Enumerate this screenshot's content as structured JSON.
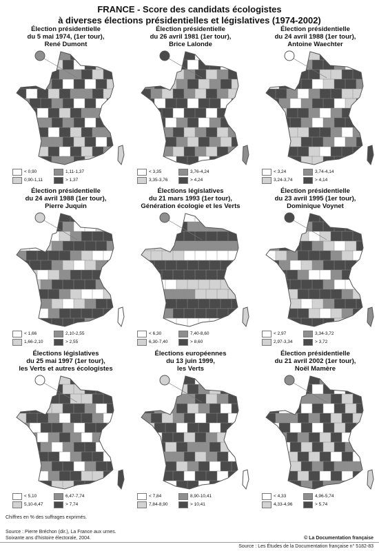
{
  "header": {
    "line1": "FRANCE -  Score des candidats écologistes",
    "line2": "à diverses élections présidentielles et législatives (1974-2002)"
  },
  "colors": {
    "c1": "#ffffff",
    "c2": "#d2d2d2",
    "c3": "#8e8e8e",
    "c4": "#4a4a4a"
  },
  "panels": [
    {
      "title": [
        "Élection présidentielle",
        "du 5 mai 1974, (1er tour),",
        "René Dumont"
      ],
      "legend": [
        "< 0,90",
        "0,90-1,11",
        "1,11-1,37",
        "> 1,37"
      ]
    },
    {
      "title": [
        "Élection présidentielle",
        "du 26 avril 1981 (1er tour),",
        "Brice Lalonde"
      ],
      "legend": [
        "< 3,35",
        "3,35-3,76",
        "3,76-4,24",
        "> 4,24"
      ]
    },
    {
      "title": [
        "Élection présidentielle",
        "du 24 avril 1988 (1er tour),",
        "Antoine Waechter"
      ],
      "legend": [
        "< 3,24",
        "3,24-3,74",
        "3,74-4,14",
        "> 4,14"
      ]
    },
    {
      "title": [
        "Élection présidentielle",
        "du 24 avril 1988 (1er tour),",
        "Pierre Juquin"
      ],
      "legend": [
        "< 1,66",
        "1,66-2,10",
        "2,10-2,55",
        "> 2,55"
      ]
    },
    {
      "title": [
        "Élections législatives",
        "du 21 mars 1993 (1er tour),",
        "Génération écologie et les Verts"
      ],
      "legend": [
        "< 6,30",
        "6,30-7,40",
        "7,40-8,60",
        "> 8,60"
      ]
    },
    {
      "title": [
        "Élection présidentielle",
        "du 23 avril 1995 (1er tour),",
        "Dominique Voynet"
      ],
      "legend": [
        "< 2,97",
        "2,97-3,34",
        "3,34-3,72",
        "> 3,72"
      ]
    },
    {
      "title": [
        "Élections législatives",
        "du 25 mai 1997 (1er tour),",
        "les Verts et autres écologistes"
      ],
      "legend": [
        "< 5,10",
        "5,10-6,47",
        "6,47-7,74",
        "> 7,74"
      ]
    },
    {
      "title": [
        "Élections européennes",
        "du 13 juin 1999,",
        "les Verts"
      ],
      "legend": [
        "< 7,84",
        "7,84-8,90",
        "8,90-10,41",
        "> 10,41"
      ]
    },
    {
      "title": [
        "Élection présidentielle",
        "du 21 avril 2002 (1er tour),",
        "Noël Mamère"
      ],
      "legend": [
        "< 4,33",
        "4,33-4,96",
        "4,96-5,74",
        "> 5,74"
      ]
    }
  ],
  "footer": {
    "note": "Chiffres en % des suffrages exprimés.",
    "source1": "Source : Pierre Bréchon (dir.), La France aux urnes.",
    "source2": "Soixante ans d'histoire électorale, 2004.",
    "copyright": "© La Documentation française",
    "bottom": "Source : Les Études de la Documentation française n° 5182-83"
  }
}
